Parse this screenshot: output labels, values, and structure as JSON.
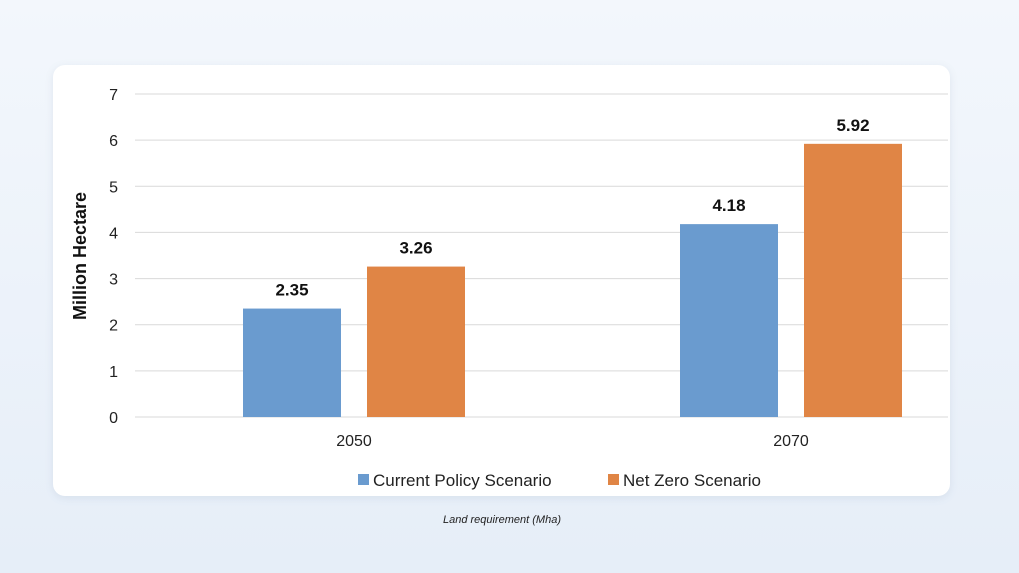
{
  "chart_data": {
    "type": "bar",
    "categories": [
      "2050",
      "2070"
    ],
    "series": [
      {
        "name": "Current Policy Scenario",
        "values": [
          2.35,
          4.18
        ],
        "color": "#6a9bcf"
      },
      {
        "name": "Net Zero Scenario",
        "values": [
          3.26,
          5.92
        ],
        "color": "#e08545"
      }
    ],
    "data_labels": [
      [
        "2.35",
        "4.18"
      ],
      [
        "3.26",
        "5.92"
      ]
    ],
    "ylabel": "Million Hectare",
    "xlabel": "",
    "ylim": [
      0,
      7
    ],
    "yticks": [
      "0",
      "1",
      "2",
      "3",
      "4",
      "5",
      "6",
      "7"
    ],
    "grid": true,
    "legend_position": "bottom",
    "caption": "Land requirement (Mha)"
  }
}
